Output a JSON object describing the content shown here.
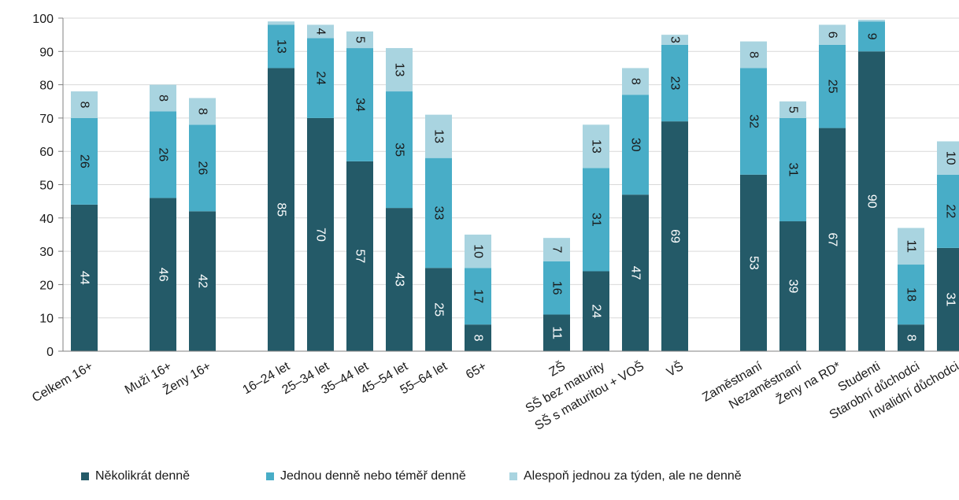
{
  "colors": {
    "series1": "#245a68",
    "series2": "#48adc7",
    "series3": "#a9d4e0",
    "axis": "#808080",
    "grid": "#d9d9d9",
    "label_dark_bg": "#ffffff",
    "label_light_bg": "#1a1a1a"
  },
  "chart_data": {
    "type": "bar",
    "stacked": true,
    "ylim": [
      0,
      100
    ],
    "yticks": [
      "0",
      "10",
      "20",
      "30",
      "40",
      "50",
      "60",
      "70",
      "80",
      "90",
      "100"
    ],
    "grid": true,
    "legend_position": "bottom",
    "groups": [
      [
        "Celkem 16+"
      ],
      [
        "Muži 16+",
        "Ženy 16+"
      ],
      [
        "16–24 let",
        "25–34 let",
        "35–44 let",
        "45–54 let",
        "55–64 let",
        "65+"
      ],
      [
        "ZŠ",
        "SŠ bez maturity",
        "SŠ s maturitou + VOŠ",
        "VŠ"
      ],
      [
        "Zaměstnaní",
        "Nezaměstnaní",
        "Ženy na RD*",
        "Studenti",
        "Starobní důchodci",
        "Invalidní důchodci"
      ]
    ],
    "categories": [
      "Celkem 16+",
      "Muži 16+",
      "Ženy 16+",
      "16–24 let",
      "25–34 let",
      "35–44 let",
      "45–54 let",
      "55–64 let",
      "65+",
      "ZŠ",
      "SŠ bez maturity",
      "SŠ s maturitou + VOŠ",
      "VŠ",
      "Zaměstnaní",
      "Nezaměstnaní",
      "Ženy na RD*",
      "Studenti",
      "Starobní důchodci",
      "Invalidní důchodci"
    ],
    "series": [
      {
        "name": "Několikrát denně",
        "values": [
          44,
          46,
          42,
          85,
          70,
          57,
          43,
          25,
          8,
          11,
          24,
          47,
          69,
          53,
          39,
          67,
          90,
          8,
          31
        ]
      },
      {
        "name": "Jednou denně nebo téměř denně",
        "values": [
          26,
          26,
          26,
          13,
          24,
          34,
          35,
          33,
          17,
          16,
          31,
          30,
          23,
          32,
          31,
          25,
          9,
          18,
          22
        ]
      },
      {
        "name": "Alespoň jednou za týden, ale ne denně",
        "values": [
          8,
          8,
          8,
          1,
          4,
          5,
          13,
          13,
          10,
          7,
          13,
          8,
          3,
          8,
          5,
          6,
          0.5,
          11,
          10
        ]
      }
    ],
    "data_labels": [
      [
        "44",
        "46",
        "42",
        "85",
        "70",
        "57",
        "43",
        "25",
        "8",
        "11",
        "24",
        "47",
        "69",
        "53",
        "39",
        "67",
        "90",
        "8",
        "31"
      ],
      [
        "26",
        "26",
        "26",
        "13",
        "24",
        "34",
        "35",
        "33",
        "17",
        "16",
        "31",
        "30",
        "23",
        "32",
        "31",
        "25",
        "9",
        "18",
        "22"
      ],
      [
        "8",
        "8",
        "8",
        "",
        "4",
        "5",
        "13",
        "13",
        "10",
        "7",
        "13",
        "8",
        "3",
        "8",
        "5",
        "6",
        "",
        "11",
        "10"
      ]
    ]
  }
}
